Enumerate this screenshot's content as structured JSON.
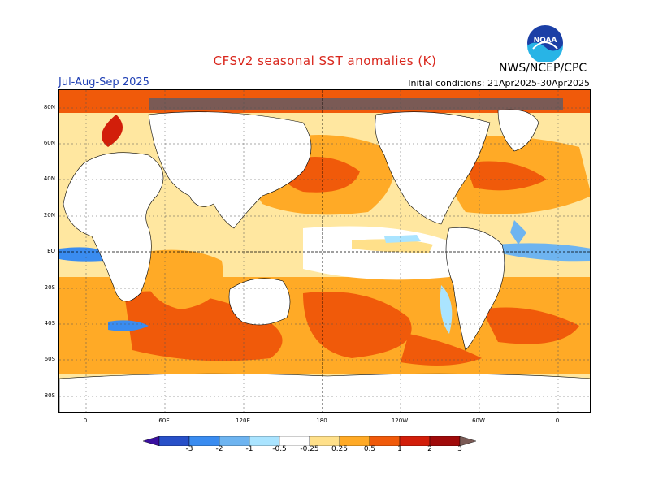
{
  "header": {
    "title": "CFSv2 seasonal SST anomalies (K)",
    "season": "Jul-Aug-Sep 2025",
    "initial_conditions": "Initial conditions: 21Apr2025-30Apr2025",
    "agency": "NWS/NCEP/CPC",
    "logo_text": "NOAA"
  },
  "axes": {
    "lat_labels": [
      "80N",
      "60N",
      "40N",
      "20N",
      "EQ",
      "20S",
      "40S",
      "60S",
      "80S"
    ],
    "lon_labels": [
      "0",
      "60E",
      "120E",
      "180",
      "120W",
      "60W",
      "0"
    ]
  },
  "colorbar": {
    "ticks": [
      "-3",
      "-2",
      "-1",
      "-0.5",
      "-0.25",
      "0.25",
      "0.5",
      "1",
      "2",
      "3"
    ],
    "colors": [
      "#3a0fa0",
      "#2850c8",
      "#3a8cf0",
      "#6eb4f0",
      "#aae4ff",
      "#ffffff",
      "#ffe08a",
      "#ffaa26",
      "#f05a0a",
      "#d21e0a",
      "#a00a0a",
      "#7a5a55"
    ]
  },
  "colors": {
    "title": "#d9261c",
    "season": "#1f3fb4",
    "land": "#ffffff",
    "ice": "#7a5a55"
  }
}
